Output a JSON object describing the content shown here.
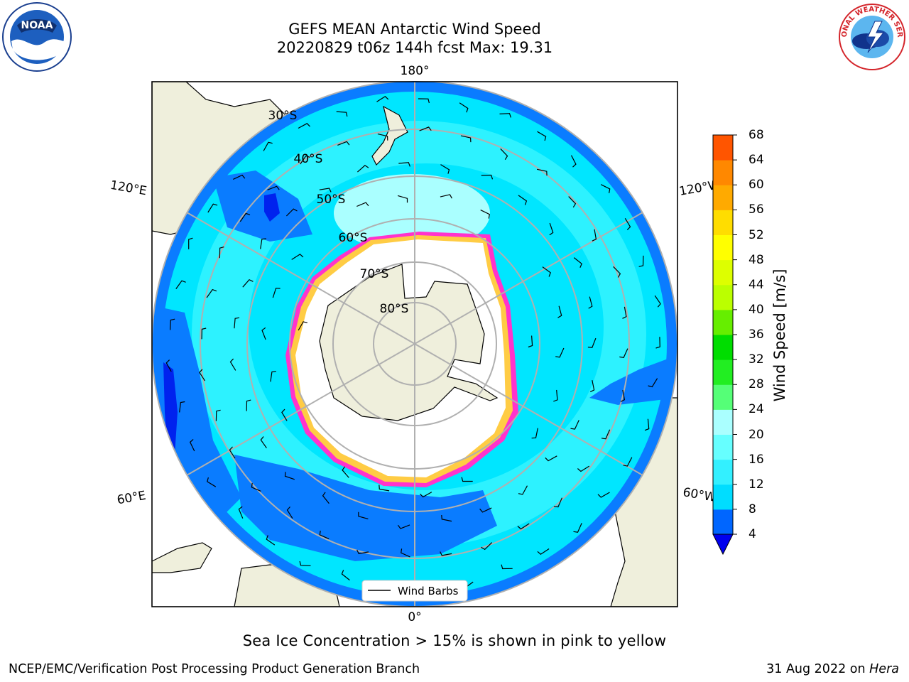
{
  "header": {
    "title_line1": "GEFS MEAN Antarctic Wind Speed",
    "title_line2": "20220829 t06z 144h fcst   Max: 19.31"
  },
  "map": {
    "projection": "south-polar-stereographic",
    "lon_labels": {
      "top": "180°",
      "bottom": "0°",
      "left_upper": "120°E",
      "left_lower": "60°E",
      "right_upper": "120°W",
      "right_lower": "60°W"
    },
    "lat_labels": [
      "30°S",
      "40°S",
      "50°S",
      "60°S",
      "70°S",
      "80°S"
    ],
    "legend_label": "Wind Barbs",
    "colors": {
      "land": "#efefdc",
      "ice_free": "#ffffff",
      "ice_edge": "#ff33cc",
      "ice_yellow": "#ffcc44",
      "grid": "#b0b0b0"
    }
  },
  "colorbar": {
    "label": "Wind Speed [m/s]",
    "ticks": [
      "4",
      "8",
      "12",
      "16",
      "20",
      "24",
      "28",
      "32",
      "36",
      "40",
      "44",
      "48",
      "52",
      "56",
      "60",
      "64",
      "68"
    ],
    "colors": [
      "#0066ff",
      "#00ddff",
      "#33f0ff",
      "#66ffff",
      "#aaffff",
      "#55ff77",
      "#22ee22",
      "#00dd00",
      "#66ee00",
      "#bbff00",
      "#ddff00",
      "#ffff00",
      "#ffdd00",
      "#ffaa00",
      "#ff8800",
      "#ff5500",
      "#ff2200",
      "#ff0000"
    ],
    "extend_color": "#0000ee"
  },
  "caption": "Sea Ice Concentration > 15% is shown in pink to yellow",
  "footer": {
    "left": "NCEP/EMC/Verification Post Processing Product Generation Branch",
    "right_prefix": "31 Aug 2022 on ",
    "right_host": "Hera"
  },
  "logos": {
    "left": {
      "icon": "noaa-logo-icon",
      "text": "NOAA"
    },
    "right": {
      "icon": "nws-logo-icon",
      "text": "NATIONAL WEATHER SERVICE"
    }
  }
}
